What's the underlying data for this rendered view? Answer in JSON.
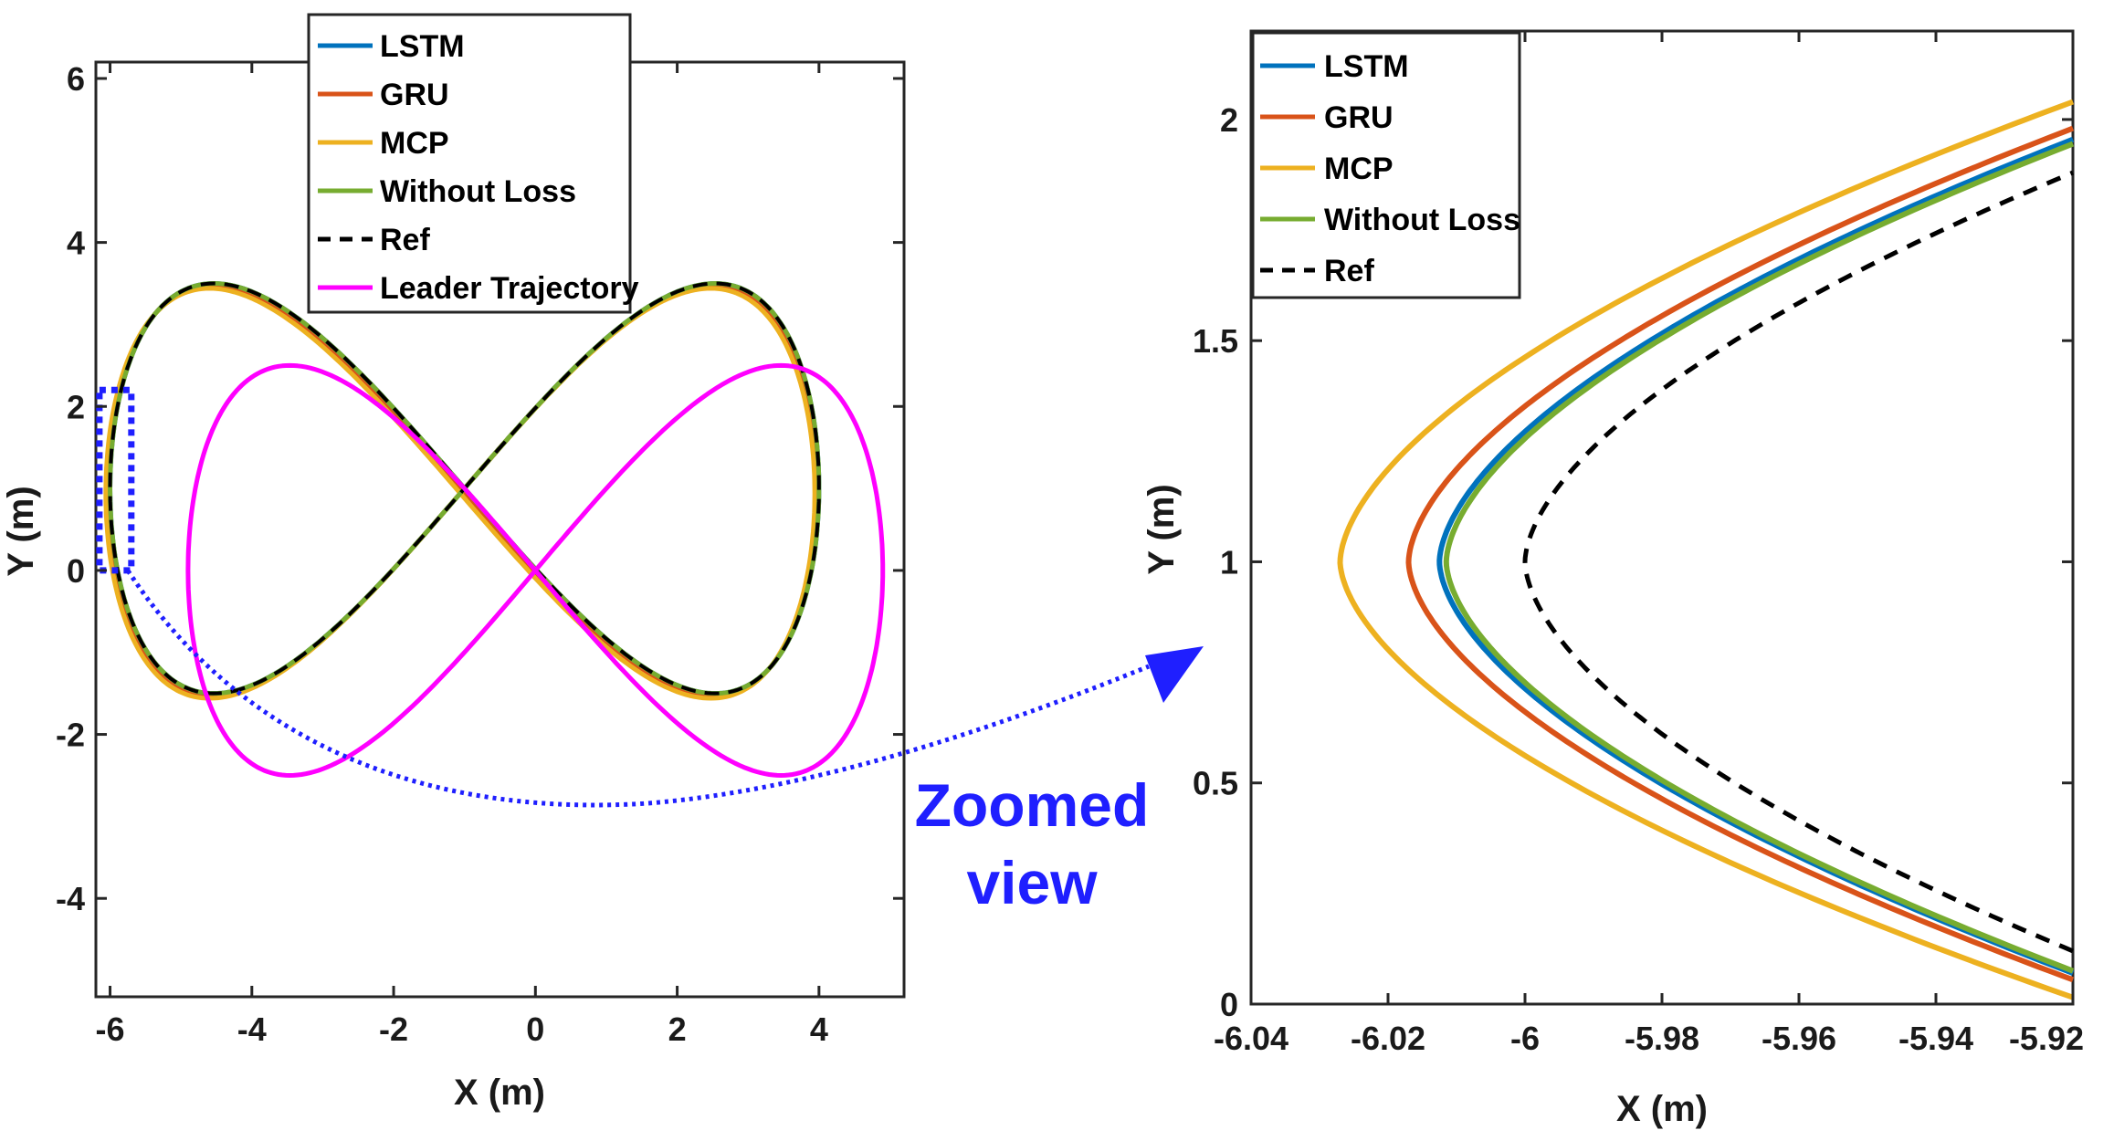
{
  "chart_data": [
    {
      "id": "main",
      "type": "line",
      "xlabel": "X (m)",
      "ylabel": "Y (m)",
      "xlim": [
        -6.2,
        5.2
      ],
      "ylim": [
        -5.2,
        6.2
      ],
      "xticks": [
        -6,
        -4,
        -2,
        0,
        2,
        4
      ],
      "yticks": [
        -4,
        -2,
        0,
        2,
        4,
        6
      ],
      "grid": false,
      "legend_position": "top-center",
      "legend": [
        "LSTM",
        "GRU",
        "MCP",
        "Without Loss",
        "Ref",
        "Leader Trajectory"
      ],
      "series": [
        {
          "name": "LSTM",
          "color": "#0072bd",
          "style": "solid",
          "ref_x": [
            -5.95,
            3.95
          ],
          "ref_y": [
            -1.5,
            3.5
          ],
          "dx": 0.0,
          "dy": 0.0
        },
        {
          "name": "GRU",
          "color": "#d95319",
          "style": "solid",
          "ref_x": [
            -5.95,
            3.95
          ],
          "ref_y": [
            -1.5,
            3.5
          ],
          "dx": -0.02,
          "dy": -0.02
        },
        {
          "name": "MCP",
          "color": "#edb120",
          "style": "solid",
          "ref_x": [
            -5.95,
            3.95
          ],
          "ref_y": [
            -1.5,
            3.5
          ],
          "dx": -0.06,
          "dy": -0.06
        },
        {
          "name": "Without Loss",
          "color": "#77ac30",
          "style": "solid",
          "ref_x": [
            -5.95,
            3.95
          ],
          "ref_y": [
            -1.5,
            3.5
          ],
          "dx": 0.0,
          "dy": 0.0
        },
        {
          "name": "Ref",
          "color": "#000000",
          "style": "dashed",
          "ref_x": [
            -5.95,
            3.95
          ],
          "ref_y": [
            -1.5,
            3.5
          ],
          "dx": 0.0,
          "dy": 0.0
        },
        {
          "name": "Leader Trajectory",
          "color": "#ff00ff",
          "style": "solid",
          "center": [
            0,
            0
          ],
          "amp_x": 5.0,
          "amp_y": 2.5
        }
      ],
      "zoom_box": {
        "x": [
          -6.15,
          -5.7
        ],
        "y": [
          0,
          2.2
        ],
        "color": "#1f1fff"
      }
    },
    {
      "id": "zoom",
      "type": "line",
      "xlabel": "X (m)",
      "ylabel": "Y (m)",
      "xlim": [
        -6.04,
        -5.92
      ],
      "ylim": [
        0,
        2.2
      ],
      "xticks": [
        -6.04,
        -6.02,
        -6,
        -5.98,
        -5.96,
        -5.94,
        -5.92
      ],
      "yticks": [
        0,
        0.5,
        1,
        1.5,
        2
      ],
      "grid": false,
      "legend_position": "top-left",
      "legend": [
        "LSTM",
        "GRU",
        "MCP",
        "Without Loss",
        "Ref"
      ],
      "series": [
        {
          "name": "MCP",
          "color": "#edb120",
          "style": "solid",
          "vertex_x": -6.027,
          "end_top": -5.92,
          "y_top": 2.04,
          "y_bot": 0.015
        },
        {
          "name": "GRU",
          "color": "#d95319",
          "style": "solid",
          "vertex_x": -6.017,
          "end_top": -5.92,
          "y_top": 1.98,
          "y_bot": 0.055
        },
        {
          "name": "LSTM",
          "color": "#0072bd",
          "style": "solid",
          "vertex_x": -6.0125,
          "end_top": -5.92,
          "y_top": 1.955,
          "y_bot": 0.07
        },
        {
          "name": "Without Loss",
          "color": "#77ac30",
          "style": "solid",
          "vertex_x": -6.0115,
          "end_top": -5.92,
          "y_top": 1.945,
          "y_bot": 0.075
        },
        {
          "name": "Ref",
          "color": "#000000",
          "style": "dashed",
          "vertex_x": -6.0,
          "end_top": -5.92,
          "y_top": 1.88,
          "y_bot": 0.12
        }
      ]
    }
  ],
  "callout": {
    "line1": "Zoomed",
    "line2": "view",
    "color": "#1f1fff"
  }
}
